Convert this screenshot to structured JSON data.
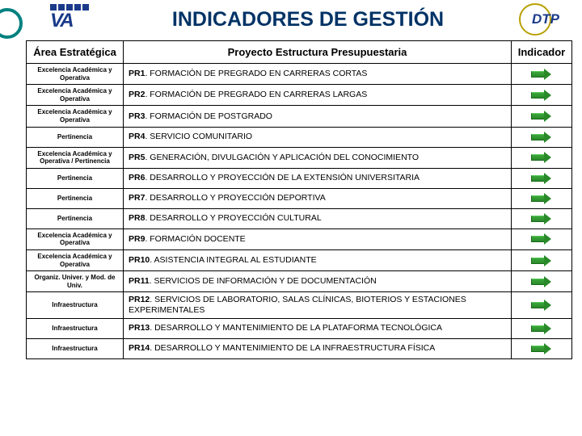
{
  "title": "INDICADORES DE GESTIÓN",
  "logo_va_text": "VA",
  "logo_dtp_text": "DTP",
  "columns": {
    "area": "Área Estratégica",
    "project": "Proyecto Estructura Presupuestaria",
    "indicator": "Indicador"
  },
  "rows": [
    {
      "area": "Excelencia Académica y Operativa",
      "code": "PR1",
      "desc": ". FORMACIÓN DE PREGRADO EN CARRERAS CORTAS"
    },
    {
      "area": "Excelencia Académica y Operativa",
      "code": "PR2",
      "desc": ". FORMACIÓN DE PREGRADO EN CARRERAS LARGAS"
    },
    {
      "area": "Excelencia Académica y Operativa",
      "code": "PR3",
      "desc": ". FORMACIÓN DE POSTGRADO"
    },
    {
      "area": "Pertinencia",
      "code": "PR4",
      "desc": ". SERVICIO COMUNITARIO"
    },
    {
      "area": "Excelencia Académica y Operativa / Pertinencia",
      "code": "PR5",
      "desc": ". GENERACIÓN, DIVULGACIÓN Y APLICACIÓN DEL CONOCIMIENTO"
    },
    {
      "area": "Pertinencia",
      "code": "PR6",
      "desc": ". DESARROLLO Y PROYECCIÓN DE LA EXTENSIÓN UNIVERSITARIA"
    },
    {
      "area": "Pertinencia",
      "code": "PR7",
      "desc": ". DESARROLLO Y PROYECCIÓN DEPORTIVA"
    },
    {
      "area": "Pertinencia",
      "code": "PR8",
      "desc": ". DESARROLLO Y PROYECCIÓN CULTURAL"
    },
    {
      "area": "Excelencia Académica y Operativa",
      "code": "PR9",
      "desc": ". FORMACIÓN DOCENTE"
    },
    {
      "area": "Excelencia Académica y Operativa",
      "code": "PR10",
      "desc": ". ASISTENCIA INTEGRAL AL ESTUDIANTE"
    },
    {
      "area": "Organiz. Univer. y Mod. de Univ.",
      "code": "PR11",
      "desc": ". SERVICIOS DE INFORMACIÓN Y DE DOCUMENTACIÓN"
    },
    {
      "area": "Infraestructura",
      "code": "PR12",
      "desc": ". SERVICIOS DE LABORATORIO, SALAS CLÍNICAS, BIOTERIOS Y ESTACIONES EXPERIMENTALES"
    },
    {
      "area": "Infraestructura",
      "code": "PR13",
      "desc": ". DESARROLLO Y MANTENIMIENTO DE LA PLATAFORMA TECNOLÓGICA"
    },
    {
      "area": "Infraestructura",
      "code": "PR14",
      "desc": ". DESARROLLO Y MANTENIMIENTO DE LA INFRAESTRUCTURA FÍSICA"
    }
  ],
  "colors": {
    "title": "#003366",
    "border": "#000000",
    "arrow": "#2a8a2a",
    "accent": "#008080"
  }
}
